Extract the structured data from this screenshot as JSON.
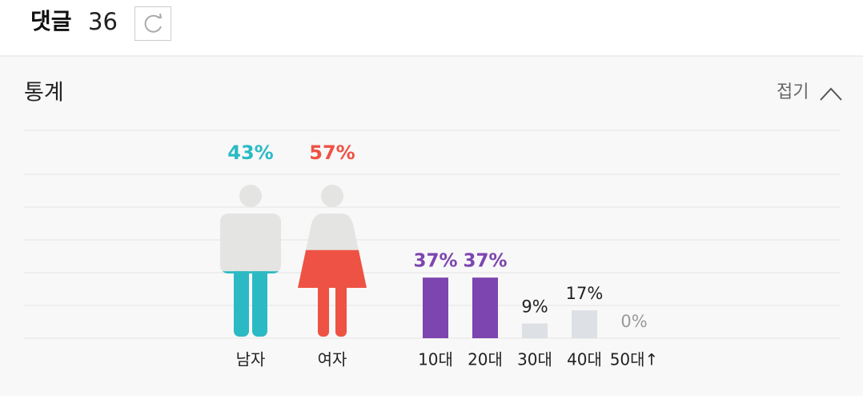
{
  "header": {
    "title": "댓글",
    "count": 36
  },
  "stats": {
    "title": "통계",
    "toggle": "접기"
  },
  "gender_chart": {
    "type": "pictogram",
    "categories": [
      "남자",
      "여자"
    ],
    "values": [
      43,
      57
    ],
    "value_labels": [
      "43%",
      "57%"
    ],
    "colors": [
      "#2bbac4",
      "#ee5244"
    ],
    "base_color": "#e4e4e2"
  },
  "age_chart": {
    "type": "bar",
    "categories": [
      "10대",
      "20대",
      "30대",
      "40대",
      "50대↑"
    ],
    "values": [
      37,
      37,
      9,
      17,
      0
    ],
    "value_labels": [
      "37%",
      "37%",
      "9%",
      "17%",
      "0%"
    ],
    "colors": [
      "#7d45b0",
      "#7d45b0",
      "#dde0e4",
      "#dde0e4",
      "#dde0e4"
    ],
    "ylim": [
      0,
      100
    ]
  }
}
